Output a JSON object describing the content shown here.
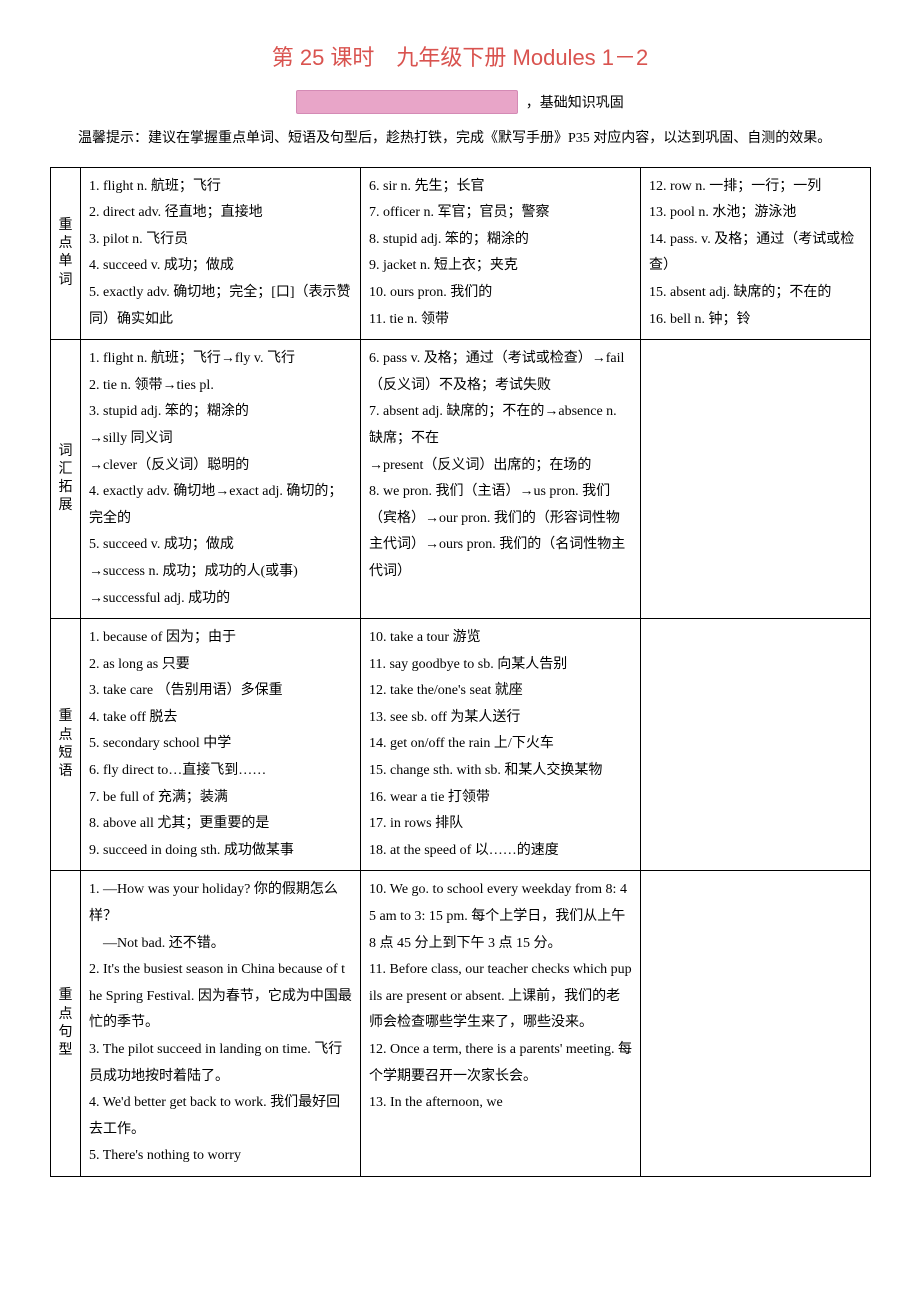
{
  "title": "第 25 课时　九年级下册 Modules 1－2",
  "banner_label": "，基础知识巩固",
  "tip": "温馨提示：建议在掌握重点单词、短语及句型后，趁热打铁，完成《默写手册》P35 对应内容，以达到巩固、自测的效果。",
  "colors": {
    "title": "#d9534f",
    "banner_bg": "#e8a5c8",
    "banner_border": "#d48ab5",
    "border": "#000000",
    "text": "#000000",
    "background": "#ffffff"
  },
  "rows": [
    {
      "head": "重点单词",
      "col_a": [
        "1. flight n. 航班；飞行",
        "2. direct adv. 径直地；直接地",
        "3. pilot n. 飞行员",
        "4. succeed v. 成功；做成",
        "5. exactly adv. 确切地；完全；[口]（表示赞同）确实如此"
      ],
      "col_b": [
        "6. sir n. 先生；长官",
        "7. officer n. 军官；官员；警察",
        "8. stupid adj. 笨的；糊涂的",
        "9. jacket n. 短上衣；夹克",
        "10. ours pron. 我们的",
        "11. tie n. 领带"
      ],
      "col_c": [
        "12. row n. 一排；一行；一列",
        "13. pool n. 水池；游泳池",
        "14. pass. v. 及格；通过（考试或检查）",
        "15. absent adj. 缺席的；不在的",
        "16. bell n. 钟；铃"
      ]
    },
    {
      "head": "词汇拓展",
      "col_a": [
        "1. flight n. 航班；飞行→fly v. 飞行",
        "2. tie n. 领带→ties pl.",
        "3. stupid adj. 笨的；糊涂的",
        "→silly 同义词",
        "→clever（反义词）聪明的",
        "4. exactly adv. 确切地→exact adj. 确切的；完全的",
        "5. succeed v. 成功；做成",
        "→success n. 成功；成功的人(或事)",
        "→successful adj. 成功的"
      ],
      "col_b": [
        "6. pass v. 及格；通过（考试或检查）→fail（反义词）不及格；考试失败",
        "7. absent adj. 缺席的；不在的→absence n. 缺席；不在",
        "→present（反义词）出席的；在场的",
        "8. we pron. 我们（主语）→us pron. 我们（宾格）→our pron. 我们的（形容词性物主代词）→ours pron. 我们的（名词性物主代词）"
      ],
      "col_c": []
    },
    {
      "head": "重点短语",
      "col_a": [
        "1. because of 因为；由于",
        "2. as long as 只要",
        "3. take care （告别用语）多保重",
        "4. take off 脱去",
        "5. secondary school 中学",
        "6. fly direct to…直接飞到……",
        "7. be full of 充满；装满",
        "8. above all 尤其；更重要的是",
        "9. succeed in doing sth. 成功做某事"
      ],
      "col_b": [
        "10. take a tour 游览",
        "11. say goodbye to sb. 向某人告别",
        "12. take the/one's seat 就座",
        "13. see sb. off 为某人送行",
        "14. get on/off the rain 上/下火车",
        "15. change sth. with sb. 和某人交换某物",
        "16. wear a tie 打领带",
        "17. in rows 排队",
        "18. at the speed of 以……的速度"
      ],
      "col_c": []
    },
    {
      "head": "重点句型",
      "col_a": [
        "1. —How was your holiday? 你的假期怎么样？",
        "　—Not bad. 还不错。",
        "2. It's the busiest season in China because of the Spring Festival. 因为春节，它成为中国最忙的季节。",
        "3. The pilot succeed in landing on time. 飞行员成功地按时着陆了。",
        "4. We'd better get back to work. 我们最好回去工作。",
        "5. There's nothing to worry"
      ],
      "col_b": [
        "10. We go. to school every weekday from 8: 45 am to 3: 15 pm. 每个上学日，我们从上午 8 点 45 分上到下午 3 点 15 分。",
        "11. Before class, our teacher checks which pupils are present or absent. 上课前，我们的老师会检查哪些学生来了，哪些没来。",
        "12. Once a term, there is a parents' meeting. 每个学期要召开一次家长会。",
        "13. In the afternoon, we"
      ],
      "col_c": []
    }
  ]
}
